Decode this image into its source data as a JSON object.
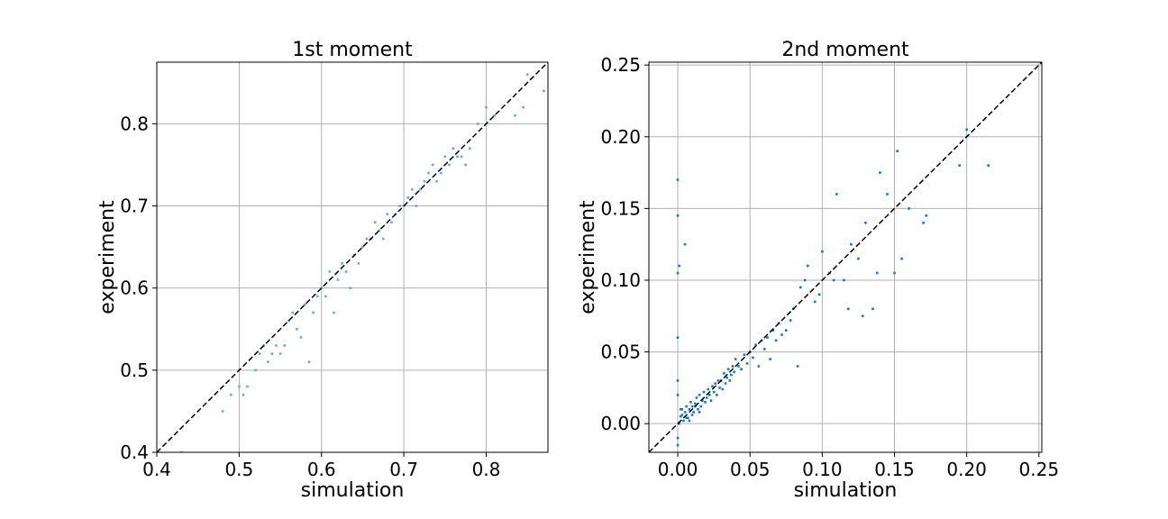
{
  "chart_data": [
    {
      "type": "scatter",
      "title": "1st moment",
      "xlabel": "simulation",
      "ylabel": "experiment",
      "xlim": [
        0.4,
        0.875
      ],
      "ylim": [
        0.4,
        0.875
      ],
      "xticks": [
        0.4,
        0.5,
        0.6,
        0.7,
        0.8
      ],
      "yticks": [
        0.4,
        0.5,
        0.6,
        0.7,
        0.8
      ],
      "xtick_labels": [
        "0.4",
        "0.5",
        "0.6",
        "0.7",
        "0.8"
      ],
      "ytick_labels": [
        "0.4",
        "0.5",
        "0.6",
        "0.7",
        "0.8"
      ],
      "grid": true,
      "reference_line": "y = x (dashed, black)",
      "point_color": "#6fa7d6",
      "series": [
        {
          "x": [
            0.43,
            0.48,
            0.49,
            0.5,
            0.505,
            0.51,
            0.52,
            0.525,
            0.53,
            0.535,
            0.54,
            0.545,
            0.55,
            0.555,
            0.56,
            0.565,
            0.57,
            0.575,
            0.58,
            0.585,
            0.59,
            0.595,
            0.6,
            0.605,
            0.61,
            0.615,
            0.62,
            0.625,
            0.63,
            0.635,
            0.64,
            0.645,
            0.65,
            0.655,
            0.66,
            0.665,
            0.67,
            0.675,
            0.68,
            0.685,
            0.69,
            0.695,
            0.7,
            0.705,
            0.71,
            0.715,
            0.72,
            0.725,
            0.73,
            0.735,
            0.74,
            0.745,
            0.75,
            0.755,
            0.76,
            0.765,
            0.77,
            0.775,
            0.78,
            0.79,
            0.8,
            0.81,
            0.835,
            0.845,
            0.85,
            0.87
          ],
          "y": [
            0.4,
            0.45,
            0.47,
            0.48,
            0.47,
            0.48,
            0.5,
            0.52,
            0.53,
            0.51,
            0.52,
            0.53,
            0.52,
            0.53,
            0.56,
            0.57,
            0.55,
            0.54,
            0.58,
            0.51,
            0.57,
            0.59,
            0.6,
            0.59,
            0.62,
            0.57,
            0.61,
            0.63,
            0.62,
            0.6,
            0.64,
            0.63,
            0.65,
            0.66,
            0.66,
            0.68,
            0.67,
            0.66,
            0.69,
            0.68,
            0.69,
            0.7,
            0.7,
            0.71,
            0.72,
            0.7,
            0.72,
            0.73,
            0.74,
            0.75,
            0.73,
            0.74,
            0.76,
            0.75,
            0.77,
            0.76,
            0.76,
            0.75,
            0.77,
            0.8,
            0.82,
            0.81,
            0.81,
            0.82,
            0.86,
            0.84
          ]
        }
      ]
    },
    {
      "type": "scatter",
      "title": "2nd moment",
      "xlabel": "simulation",
      "ylabel": "experiment",
      "xlim": [
        -0.02,
        0.252
      ],
      "ylim": [
        -0.02,
        0.252
      ],
      "xticks": [
        0.0,
        0.05,
        0.1,
        0.15,
        0.2,
        0.25
      ],
      "yticks": [
        0.0,
        0.05,
        0.1,
        0.15,
        0.2,
        0.25
      ],
      "xtick_labels": [
        "0.00",
        "0.05",
        "0.10",
        "0.15",
        "0.20",
        "0.25"
      ],
      "ytick_labels": [
        "0.00",
        "0.05",
        "0.10",
        "0.15",
        "0.20",
        "0.25"
      ],
      "grid": true,
      "reference_line": "y = x (dashed, black)",
      "point_color": "#1f77b4",
      "series": [
        {
          "x": [
            0.0,
            0.0,
            0.001,
            0.002,
            0.003,
            0.004,
            0.005,
            0.006,
            0.007,
            0.008,
            0.009,
            0.01,
            0.011,
            0.012,
            0.013,
            0.014,
            0.015,
            0.016,
            0.017,
            0.018,
            0.019,
            0.02,
            0.021,
            0.022,
            0.023,
            0.024,
            0.025,
            0.026,
            0.027,
            0.028,
            0.029,
            0.03,
            0.031,
            0.032,
            0.033,
            0.034,
            0.035,
            0.036,
            0.037,
            0.038,
            0.039,
            0.04,
            0.042,
            0.044,
            0.046,
            0.048,
            0.05,
            0.052,
            0.054,
            0.056,
            0.058,
            0.06,
            0.062,
            0.064,
            0.066,
            0.068,
            0.07,
            0.072,
            0.075,
            0.078,
            0.08,
            0.083,
            0.085,
            0.088,
            0.09,
            0.095,
            0.098,
            0.1,
            0.105,
            0.108,
            0.11,
            0.115,
            0.118,
            0.12,
            0.125,
            0.128,
            0.13,
            0.135,
            0.138,
            0.14,
            0.145,
            0.15,
            0.152,
            0.155,
            0.16,
            0.17,
            0.172,
            0.195,
            0.2,
            0.215,
            0.0,
            0.0,
            0.0,
            0.0,
            0.0,
            0.0,
            0.001,
            0.002,
            0.003,
            0.005,
            0.006,
            0.008,
            0.01,
            0.012,
            0.015
          ],
          "y": [
            0.17,
            0.145,
            0.0,
            0.005,
            0.01,
            0.002,
            0.008,
            0.012,
            0.004,
            0.01,
            0.015,
            0.012,
            0.008,
            0.014,
            0.018,
            0.01,
            0.02,
            0.012,
            0.016,
            0.022,
            0.015,
            0.018,
            0.024,
            0.02,
            0.016,
            0.026,
            0.022,
            0.028,
            0.02,
            0.03,
            0.025,
            0.03,
            0.024,
            0.035,
            0.028,
            0.032,
            0.038,
            0.03,
            0.034,
            0.04,
            0.036,
            0.045,
            0.04,
            0.038,
            0.048,
            0.042,
            0.05,
            0.046,
            0.055,
            0.04,
            0.058,
            0.052,
            0.06,
            0.045,
            0.065,
            0.058,
            0.07,
            0.062,
            0.065,
            0.072,
            0.08,
            0.04,
            0.095,
            0.1,
            0.11,
            0.085,
            0.09,
            0.12,
            0.105,
            0.1,
            0.16,
            0.1,
            0.08,
            0.125,
            0.115,
            0.075,
            0.14,
            0.08,
            0.105,
            0.175,
            0.16,
            0.105,
            0.19,
            0.115,
            0.15,
            0.14,
            0.145,
            0.18,
            0.205,
            0.18,
            0.06,
            0.105,
            -0.01,
            -0.015,
            0.03,
            0.02,
            0.11,
            0.01,
            0.006,
            0.125,
            0.004,
            0.002,
            0.006,
            0.012,
            0.008
          ]
        }
      ]
    }
  ]
}
